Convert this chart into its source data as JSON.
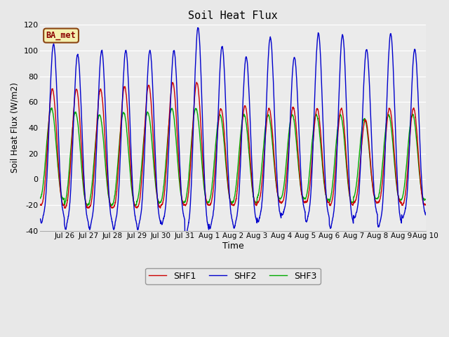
{
  "title": "Soil Heat Flux",
  "ylabel": "Soil Heat Flux (W/m2)",
  "xlabel": "Time",
  "ylim": [
    -40,
    120
  ],
  "fig_bg": "#e8e8e8",
  "plot_bg": "#ebebeb",
  "series": [
    "SHF1",
    "SHF2",
    "SHF3"
  ],
  "colors": [
    "#cc0000",
    "#0000cc",
    "#00aa00"
  ],
  "days": 16,
  "points_per_day": 144,
  "shf1_peaks": [
    70,
    70,
    70,
    72,
    73,
    75,
    75,
    55,
    57,
    55,
    56,
    55,
    55,
    46,
    55,
    55
  ],
  "shf2_peaks": [
    105,
    97,
    100,
    100,
    100,
    100,
    118,
    103,
    95,
    110,
    95,
    113,
    112,
    101,
    113,
    101
  ],
  "shf3_peaks": [
    55,
    52,
    50,
    52,
    52,
    55,
    55,
    50,
    50,
    50,
    50,
    50,
    50,
    47,
    50,
    50
  ],
  "shf1_troughs": [
    -20,
    -22,
    -22,
    -22,
    -22,
    -20,
    -20,
    -20,
    -20,
    -18,
    -18,
    -18,
    -20,
    -18,
    -18,
    -20
  ],
  "shf2_troughs": [
    -28,
    -32,
    -32,
    -32,
    -32,
    -30,
    -37,
    -32,
    -32,
    -28,
    -24,
    -28,
    -32,
    -26,
    -32,
    -26
  ],
  "shf3_troughs": [
    -15,
    -20,
    -20,
    -20,
    -18,
    -18,
    -18,
    -18,
    -18,
    -15,
    -15,
    -16,
    -18,
    -15,
    -16,
    -16
  ],
  "shf2_extra_dip": [
    -6,
    -7,
    -7,
    -7,
    -7,
    -5,
    -7,
    -6,
    -6,
    -5,
    -4,
    -5,
    -6,
    -4,
    -5,
    -4
  ],
  "yticks": [
    -40,
    -20,
    0,
    20,
    40,
    60,
    80,
    100,
    120
  ]
}
